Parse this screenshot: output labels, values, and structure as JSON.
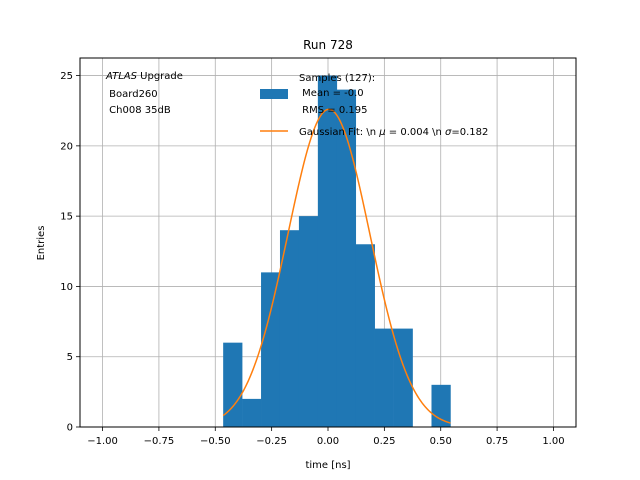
{
  "chart_data": {
    "type": "bar",
    "title": "Run 728",
    "xlabel": "time [ns]",
    "ylabel": "Entries",
    "xlim": [
      -1.1,
      1.1
    ],
    "ylim": [
      0,
      26.25
    ],
    "xticks": [
      -1.0,
      -0.75,
      -0.5,
      -0.25,
      0.0,
      0.25,
      0.5,
      0.75,
      1.0
    ],
    "xtick_labels": [
      "−1.00",
      "−0.75",
      "−0.50",
      "−0.25",
      "0.00",
      "0.25",
      "0.50",
      "0.75",
      "1.00"
    ],
    "yticks": [
      0,
      5,
      10,
      15,
      20,
      25
    ],
    "ytick_labels": [
      "0",
      "5",
      "10",
      "15",
      "20",
      "25"
    ],
    "grid": true,
    "histogram": {
      "bin_edges": [
        -0.465,
        -0.381,
        -0.297,
        -0.213,
        -0.129,
        -0.045,
        0.039,
        0.123,
        0.207,
        0.291,
        0.375,
        0.459,
        0.543
      ],
      "counts": [
        6,
        2,
        11,
        14,
        15,
        25,
        24,
        13,
        7,
        7,
        0,
        3
      ],
      "color": "#1f77b4"
    },
    "fit": {
      "type": "gaussian",
      "amplitude": 22.6,
      "mu": 0.004,
      "sigma": 0.182,
      "x_range": [
        -0.465,
        0.543
      ],
      "color": "#ff7f0e"
    },
    "legend": {
      "placement": "top-right",
      "entries": [
        {
          "label_lines": [
            "Samples (127):",
            " Mean = -0.0",
            " RMS = 0.195"
          ],
          "kind": "patch",
          "color": "#1f77b4"
        },
        {
          "label_segments": [
            "Gaussian Fit: \\n ",
            "μ",
            " = 0.004 \\n ",
            "σ",
            "=0.182"
          ],
          "kind": "line",
          "color": "#ff7f0e"
        }
      ]
    },
    "annotation": {
      "brand": "ATLAS",
      "line1_rest": " Upgrade",
      "line2": " Board260",
      "line3": " Ch008 35dB"
    }
  }
}
